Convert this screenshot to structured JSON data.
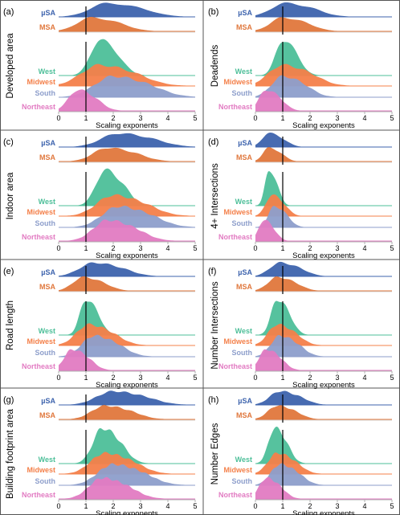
{
  "colors": {
    "uSA": "#3d63ad",
    "MSA": "#e0773c",
    "West": "#4dbf99",
    "Midwest": "#f4804a",
    "South": "#8d9ecb",
    "Northeast": "#e27bc2",
    "axis": "#b0b0b0",
    "divider": "#555555",
    "refline": "#000000"
  },
  "chart_data": [
    {
      "panel": "(a)",
      "type": "ridgeline",
      "ylabel": "Developed area",
      "xlabel": "Scaling exponents",
      "xlim": [
        0,
        5
      ],
      "xticks": [
        "0",
        "1",
        "2",
        "3",
        "4",
        "5"
      ],
      "reference_x": 1,
      "top_group": [
        {
          "name": "µSA",
          "peak": 1.8,
          "spread": 0.85
        },
        {
          "name": "MSA",
          "peak": 1.2,
          "spread": 0.7
        }
      ],
      "bottom_group": [
        {
          "name": "West",
          "peak": 1.5,
          "spread": 0.45
        },
        {
          "name": "Midwest",
          "peak": 1.5,
          "spread": 0.9
        },
        {
          "name": "South",
          "peak": 2.0,
          "spread": 0.9
        },
        {
          "name": "Northeast",
          "peak": 0.7,
          "spread": 0.45
        }
      ]
    },
    {
      "panel": "(b)",
      "type": "ridgeline",
      "ylabel": "Deadends",
      "xlabel": "Scaling exponents",
      "xlim": [
        0,
        5
      ],
      "xticks": [
        "0",
        "1",
        "2",
        "3",
        "4",
        "5"
      ],
      "reference_x": 1,
      "top_group": [
        {
          "name": "µSA",
          "peak": 1.1,
          "spread": 0.7
        },
        {
          "name": "MSA",
          "peak": 1.0,
          "spread": 0.6
        }
      ],
      "bottom_group": [
        {
          "name": "West",
          "peak": 1.0,
          "spread": 0.35
        },
        {
          "name": "Midwest",
          "peak": 1.0,
          "spread": 0.7
        },
        {
          "name": "South",
          "peak": 1.0,
          "spread": 0.55
        },
        {
          "name": "Northeast",
          "peak": 0.4,
          "spread": 0.35
        }
      ]
    },
    {
      "panel": "(c)",
      "type": "ridgeline",
      "ylabel": "Indoor area",
      "xlabel": "Scaling exponents",
      "xlim": [
        0,
        5
      ],
      "xticks": [
        "0",
        "1",
        "2",
        "3",
        "4",
        "5"
      ],
      "reference_x": 1,
      "top_group": [
        {
          "name": "µSA",
          "peak": 2.2,
          "spread": 0.85
        },
        {
          "name": "MSA",
          "peak": 1.8,
          "spread": 0.7
        }
      ],
      "bottom_group": [
        {
          "name": "West",
          "peak": 1.7,
          "spread": 0.45
        },
        {
          "name": "Midwest",
          "peak": 2.0,
          "spread": 0.8
        },
        {
          "name": "South",
          "peak": 2.2,
          "spread": 0.8
        },
        {
          "name": "Northeast",
          "peak": 1.8,
          "spread": 0.7
        }
      ]
    },
    {
      "panel": "(d)",
      "type": "ridgeline",
      "ylabel": "4+ Intersections",
      "xlabel": "Scaling exponents",
      "xlim": [
        0,
        5
      ],
      "xticks": [
        "0",
        "1",
        "2",
        "3",
        "4",
        "5"
      ],
      "reference_x": 1,
      "top_group": [
        {
          "name": "µSA",
          "peak": 0.5,
          "spread": 0.35
        },
        {
          "name": "MSA",
          "peak": 0.5,
          "spread": 0.3
        }
      ],
      "bottom_group": [
        {
          "name": "West",
          "peak": 0.5,
          "spread": 0.2
        },
        {
          "name": "Midwest",
          "peak": 0.6,
          "spread": 0.3
        },
        {
          "name": "South",
          "peak": 0.7,
          "spread": 0.3
        },
        {
          "name": "Northeast",
          "peak": 0.3,
          "spread": 0.25
        }
      ]
    },
    {
      "panel": "(e)",
      "type": "ridgeline",
      "ylabel": "Road length",
      "xlabel": "Scaling exponents",
      "xlim": [
        0,
        5
      ],
      "xticks": [
        "0",
        "1",
        "2",
        "3",
        "4",
        "5"
      ],
      "reference_x": 1,
      "top_group": [
        {
          "name": "µSA",
          "peak": 1.3,
          "spread": 0.7
        },
        {
          "name": "MSA",
          "peak": 0.9,
          "spread": 0.5
        }
      ],
      "bottom_group": [
        {
          "name": "West",
          "peak": 1.0,
          "spread": 0.3
        },
        {
          "name": "Midwest",
          "peak": 1.1,
          "spread": 0.6
        },
        {
          "name": "South",
          "peak": 1.3,
          "spread": 0.6
        },
        {
          "name": "Northeast",
          "peak": 0.5,
          "spread": 0.4
        }
      ]
    },
    {
      "panel": "(f)",
      "type": "ridgeline",
      "ylabel": "Number Intersections",
      "xlabel": "Scaling exponents",
      "xlim": [
        0,
        5
      ],
      "xticks": [
        "0",
        "1",
        "2",
        "3",
        "4",
        "5"
      ],
      "reference_x": 1,
      "top_group": [
        {
          "name": "µSA",
          "peak": 0.9,
          "spread": 0.5
        },
        {
          "name": "MSA",
          "peak": 0.8,
          "spread": 0.45
        }
      ],
      "bottom_group": [
        {
          "name": "West",
          "peak": 0.8,
          "spread": 0.3
        },
        {
          "name": "Midwest",
          "peak": 0.8,
          "spread": 0.45
        },
        {
          "name": "South",
          "peak": 0.9,
          "spread": 0.45
        },
        {
          "name": "Northeast",
          "peak": 0.4,
          "spread": 0.35
        }
      ]
    },
    {
      "panel": "(g)",
      "type": "ridgeline",
      "ylabel": "Building footprint area",
      "xlabel": "Scaling exponents",
      "xlim": [
        0,
        5
      ],
      "xticks": [
        "0",
        "1",
        "2",
        "3",
        "4",
        "5"
      ],
      "reference_x": 1,
      "top_group": [
        {
          "name": "µSA",
          "peak": 2.0,
          "spread": 0.8
        },
        {
          "name": "MSA",
          "peak": 1.7,
          "spread": 0.65
        }
      ],
      "bottom_group": [
        {
          "name": "West",
          "peak": 1.6,
          "spread": 0.45
        },
        {
          "name": "Midwest",
          "peak": 1.7,
          "spread": 0.7
        },
        {
          "name": "South",
          "peak": 2.0,
          "spread": 0.75
        },
        {
          "name": "Northeast",
          "peak": 1.6,
          "spread": 0.65
        }
      ]
    },
    {
      "panel": "(h)",
      "type": "ridgeline",
      "ylabel": "Number Edges",
      "xlabel": "Scaling exponents",
      "xlim": [
        0,
        5
      ],
      "xticks": [
        "0",
        "1",
        "2",
        "3",
        "4",
        "5"
      ],
      "reference_x": 1,
      "top_group": [
        {
          "name": "µSA",
          "peak": 0.9,
          "spread": 0.5
        },
        {
          "name": "MSA",
          "peak": 0.8,
          "spread": 0.45
        }
      ],
      "bottom_group": [
        {
          "name": "West",
          "peak": 0.7,
          "spread": 0.3
        },
        {
          "name": "Midwest",
          "peak": 0.8,
          "spread": 0.45
        },
        {
          "name": "South",
          "peak": 0.9,
          "spread": 0.45
        },
        {
          "name": "Northeast",
          "peak": 0.4,
          "spread": 0.35
        }
      ]
    }
  ]
}
